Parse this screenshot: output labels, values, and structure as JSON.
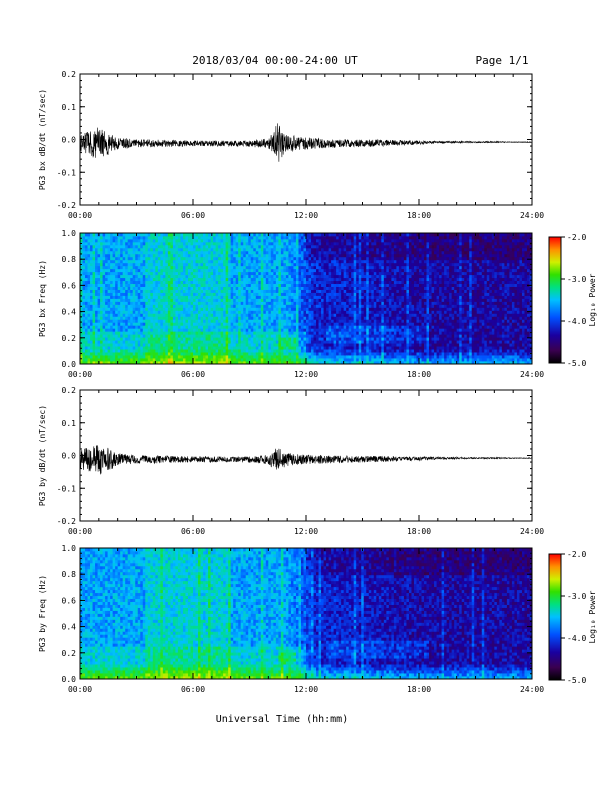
{
  "header": {
    "date_range": "2018/03/04  00:00-24:00 UT",
    "page": "Page 1/1"
  },
  "footer": {
    "xlabel": "Universal Time (hh:mm)"
  },
  "chart_data": [
    {
      "type": "line",
      "ylabel": "PG3 bx dB/dt (nT/sec)",
      "ylim": [
        -0.2,
        0.2
      ],
      "yticks": [
        "0.2",
        "0.1",
        "0.0",
        "-0.1",
        "-0.2"
      ],
      "xticks": [
        "00:00",
        "06:00",
        "12:00",
        "18:00",
        "24:00"
      ],
      "xlim_hours": [
        0,
        24
      ],
      "series_color": "#000000",
      "envelope": {
        "hours": [
          0,
          0.5,
          1,
          1.5,
          2,
          3,
          4,
          5,
          6,
          7,
          8,
          9,
          10,
          10.3,
          10.5,
          10.8,
          11,
          11.5,
          12,
          13,
          14,
          15,
          16,
          17,
          18,
          19,
          20,
          21,
          22,
          23,
          24
        ],
        "amplitude": [
          0.028,
          0.04,
          0.05,
          0.035,
          0.02,
          0.012,
          0.012,
          0.01,
          0.009,
          0.009,
          0.008,
          0.01,
          0.016,
          0.04,
          0.07,
          0.035,
          0.03,
          0.022,
          0.018,
          0.014,
          0.012,
          0.012,
          0.01,
          0.008,
          0.006,
          0.004,
          0.003,
          0.002,
          0.002,
          0.001,
          0.001
        ]
      }
    },
    {
      "type": "heatmap",
      "ylabel": "PG3 bx Freq (Hz)",
      "ylim": [
        0.0,
        1.0
      ],
      "yticks": [
        "1.0",
        "0.8",
        "0.6",
        "0.4",
        "0.2",
        "0.0"
      ],
      "xticks": [
        "00:00",
        "06:00",
        "12:00",
        "18:00",
        "24:00"
      ],
      "colorbar": {
        "label": "Log₁₀ Power",
        "ticks": [
          "-2.0",
          "-3.0",
          "-4.0",
          "-5.0"
        ],
        "range": [
          -5.0,
          -2.0
        ]
      }
    },
    {
      "type": "line",
      "ylabel": "PG3 by dB/dt (nT/sec)",
      "ylim": [
        -0.2,
        0.2
      ],
      "yticks": [
        "0.2",
        "0.1",
        "0.0",
        "-0.1",
        "-0.2"
      ],
      "xticks": [
        "00:00",
        "06:00",
        "12:00",
        "18:00",
        "24:00"
      ],
      "xlim_hours": [
        0,
        24
      ],
      "series_color": "#000000",
      "envelope": {
        "hours": [
          0,
          0.5,
          1,
          1.5,
          2,
          3,
          4,
          5,
          6,
          7,
          8,
          9,
          10,
          10.3,
          10.5,
          10.8,
          11,
          11.5,
          12,
          13,
          14,
          15,
          16,
          17,
          18,
          19,
          20,
          21,
          22,
          23,
          24
        ],
        "amplitude": [
          0.028,
          0.04,
          0.05,
          0.035,
          0.02,
          0.012,
          0.012,
          0.01,
          0.009,
          0.009,
          0.008,
          0.01,
          0.014,
          0.03,
          0.04,
          0.025,
          0.02,
          0.016,
          0.014,
          0.012,
          0.011,
          0.01,
          0.009,
          0.007,
          0.006,
          0.004,
          0.003,
          0.002,
          0.002,
          0.001,
          0.001
        ]
      }
    },
    {
      "type": "heatmap",
      "ylabel": "PG3 by Freq (Hz)",
      "ylim": [
        0.0,
        1.0
      ],
      "yticks": [
        "1.0",
        "0.8",
        "0.6",
        "0.4",
        "0.2",
        "0.0"
      ],
      "xticks": [
        "00:00",
        "06:00",
        "12:00",
        "18:00",
        "24:00"
      ],
      "colorbar": {
        "label": "Log₁₀ Power",
        "ticks": [
          "-2.0",
          "-3.0",
          "-4.0",
          "-5.0"
        ],
        "range": [
          -5.0,
          -2.0
        ]
      }
    }
  ]
}
